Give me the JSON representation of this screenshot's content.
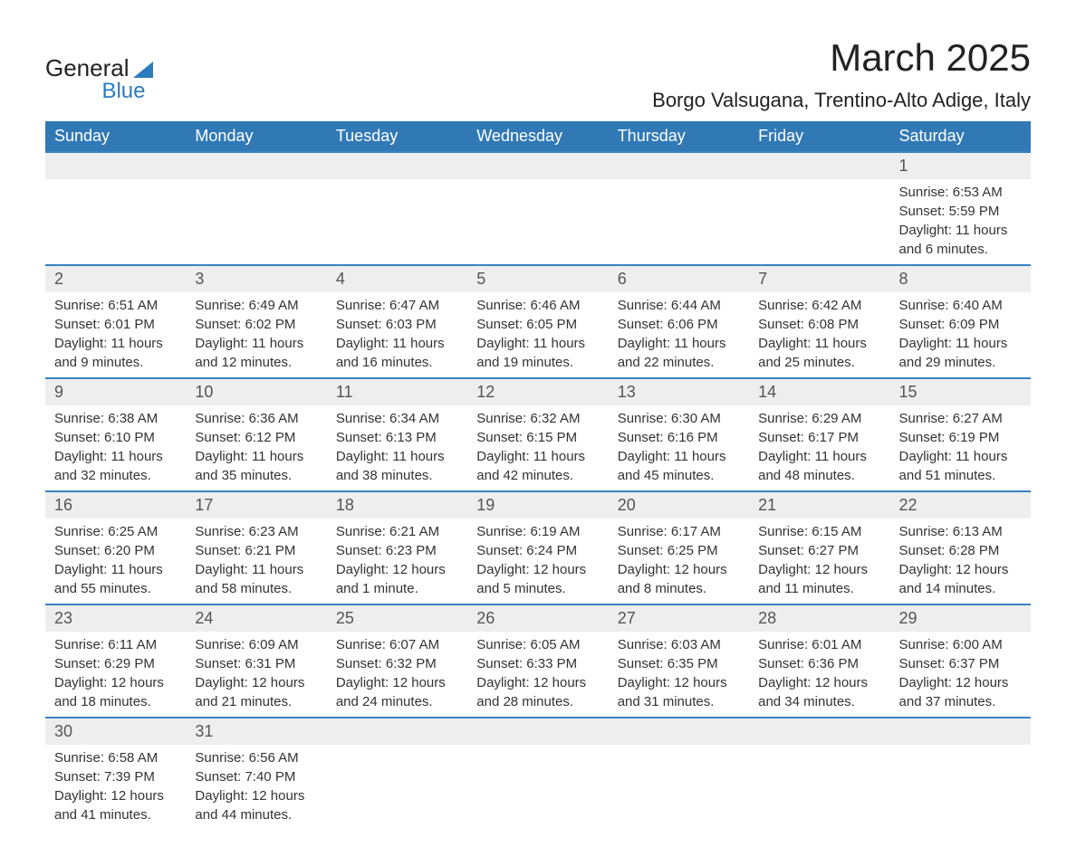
{
  "logo": {
    "text_general": "General",
    "text_blue": "Blue"
  },
  "title": "March 2025",
  "location": "Borgo Valsugana, Trentino-Alto Adige, Italy",
  "colors": {
    "header_bg": "#3179b5",
    "header_text": "#ffffff",
    "daynum_bg": "#eeeeee",
    "border": "#3a82c2",
    "accent": "#2b7bbf"
  },
  "day_headers": [
    "Sunday",
    "Monday",
    "Tuesday",
    "Wednesday",
    "Thursday",
    "Friday",
    "Saturday"
  ],
  "weeks": [
    [
      null,
      null,
      null,
      null,
      null,
      null,
      {
        "n": "1",
        "sr": "Sunrise: 6:53 AM",
        "ss": "Sunset: 5:59 PM",
        "dl1": "Daylight: 11 hours",
        "dl2": "and 6 minutes."
      }
    ],
    [
      {
        "n": "2",
        "sr": "Sunrise: 6:51 AM",
        "ss": "Sunset: 6:01 PM",
        "dl1": "Daylight: 11 hours",
        "dl2": "and 9 minutes."
      },
      {
        "n": "3",
        "sr": "Sunrise: 6:49 AM",
        "ss": "Sunset: 6:02 PM",
        "dl1": "Daylight: 11 hours",
        "dl2": "and 12 minutes."
      },
      {
        "n": "4",
        "sr": "Sunrise: 6:47 AM",
        "ss": "Sunset: 6:03 PM",
        "dl1": "Daylight: 11 hours",
        "dl2": "and 16 minutes."
      },
      {
        "n": "5",
        "sr": "Sunrise: 6:46 AM",
        "ss": "Sunset: 6:05 PM",
        "dl1": "Daylight: 11 hours",
        "dl2": "and 19 minutes."
      },
      {
        "n": "6",
        "sr": "Sunrise: 6:44 AM",
        "ss": "Sunset: 6:06 PM",
        "dl1": "Daylight: 11 hours",
        "dl2": "and 22 minutes."
      },
      {
        "n": "7",
        "sr": "Sunrise: 6:42 AM",
        "ss": "Sunset: 6:08 PM",
        "dl1": "Daylight: 11 hours",
        "dl2": "and 25 minutes."
      },
      {
        "n": "8",
        "sr": "Sunrise: 6:40 AM",
        "ss": "Sunset: 6:09 PM",
        "dl1": "Daylight: 11 hours",
        "dl2": "and 29 minutes."
      }
    ],
    [
      {
        "n": "9",
        "sr": "Sunrise: 6:38 AM",
        "ss": "Sunset: 6:10 PM",
        "dl1": "Daylight: 11 hours",
        "dl2": "and 32 minutes."
      },
      {
        "n": "10",
        "sr": "Sunrise: 6:36 AM",
        "ss": "Sunset: 6:12 PM",
        "dl1": "Daylight: 11 hours",
        "dl2": "and 35 minutes."
      },
      {
        "n": "11",
        "sr": "Sunrise: 6:34 AM",
        "ss": "Sunset: 6:13 PM",
        "dl1": "Daylight: 11 hours",
        "dl2": "and 38 minutes."
      },
      {
        "n": "12",
        "sr": "Sunrise: 6:32 AM",
        "ss": "Sunset: 6:15 PM",
        "dl1": "Daylight: 11 hours",
        "dl2": "and 42 minutes."
      },
      {
        "n": "13",
        "sr": "Sunrise: 6:30 AM",
        "ss": "Sunset: 6:16 PM",
        "dl1": "Daylight: 11 hours",
        "dl2": "and 45 minutes."
      },
      {
        "n": "14",
        "sr": "Sunrise: 6:29 AM",
        "ss": "Sunset: 6:17 PM",
        "dl1": "Daylight: 11 hours",
        "dl2": "and 48 minutes."
      },
      {
        "n": "15",
        "sr": "Sunrise: 6:27 AM",
        "ss": "Sunset: 6:19 PM",
        "dl1": "Daylight: 11 hours",
        "dl2": "and 51 minutes."
      }
    ],
    [
      {
        "n": "16",
        "sr": "Sunrise: 6:25 AM",
        "ss": "Sunset: 6:20 PM",
        "dl1": "Daylight: 11 hours",
        "dl2": "and 55 minutes."
      },
      {
        "n": "17",
        "sr": "Sunrise: 6:23 AM",
        "ss": "Sunset: 6:21 PM",
        "dl1": "Daylight: 11 hours",
        "dl2": "and 58 minutes."
      },
      {
        "n": "18",
        "sr": "Sunrise: 6:21 AM",
        "ss": "Sunset: 6:23 PM",
        "dl1": "Daylight: 12 hours",
        "dl2": "and 1 minute."
      },
      {
        "n": "19",
        "sr": "Sunrise: 6:19 AM",
        "ss": "Sunset: 6:24 PM",
        "dl1": "Daylight: 12 hours",
        "dl2": "and 5 minutes."
      },
      {
        "n": "20",
        "sr": "Sunrise: 6:17 AM",
        "ss": "Sunset: 6:25 PM",
        "dl1": "Daylight: 12 hours",
        "dl2": "and 8 minutes."
      },
      {
        "n": "21",
        "sr": "Sunrise: 6:15 AM",
        "ss": "Sunset: 6:27 PM",
        "dl1": "Daylight: 12 hours",
        "dl2": "and 11 minutes."
      },
      {
        "n": "22",
        "sr": "Sunrise: 6:13 AM",
        "ss": "Sunset: 6:28 PM",
        "dl1": "Daylight: 12 hours",
        "dl2": "and 14 minutes."
      }
    ],
    [
      {
        "n": "23",
        "sr": "Sunrise: 6:11 AM",
        "ss": "Sunset: 6:29 PM",
        "dl1": "Daylight: 12 hours",
        "dl2": "and 18 minutes."
      },
      {
        "n": "24",
        "sr": "Sunrise: 6:09 AM",
        "ss": "Sunset: 6:31 PM",
        "dl1": "Daylight: 12 hours",
        "dl2": "and 21 minutes."
      },
      {
        "n": "25",
        "sr": "Sunrise: 6:07 AM",
        "ss": "Sunset: 6:32 PM",
        "dl1": "Daylight: 12 hours",
        "dl2": "and 24 minutes."
      },
      {
        "n": "26",
        "sr": "Sunrise: 6:05 AM",
        "ss": "Sunset: 6:33 PM",
        "dl1": "Daylight: 12 hours",
        "dl2": "and 28 minutes."
      },
      {
        "n": "27",
        "sr": "Sunrise: 6:03 AM",
        "ss": "Sunset: 6:35 PM",
        "dl1": "Daylight: 12 hours",
        "dl2": "and 31 minutes."
      },
      {
        "n": "28",
        "sr": "Sunrise: 6:01 AM",
        "ss": "Sunset: 6:36 PM",
        "dl1": "Daylight: 12 hours",
        "dl2": "and 34 minutes."
      },
      {
        "n": "29",
        "sr": "Sunrise: 6:00 AM",
        "ss": "Sunset: 6:37 PM",
        "dl1": "Daylight: 12 hours",
        "dl2": "and 37 minutes."
      }
    ],
    [
      {
        "n": "30",
        "sr": "Sunrise: 6:58 AM",
        "ss": "Sunset: 7:39 PM",
        "dl1": "Daylight: 12 hours",
        "dl2": "and 41 minutes."
      },
      {
        "n": "31",
        "sr": "Sunrise: 6:56 AM",
        "ss": "Sunset: 7:40 PM",
        "dl1": "Daylight: 12 hours",
        "dl2": "and 44 minutes."
      },
      null,
      null,
      null,
      null,
      null
    ]
  ]
}
